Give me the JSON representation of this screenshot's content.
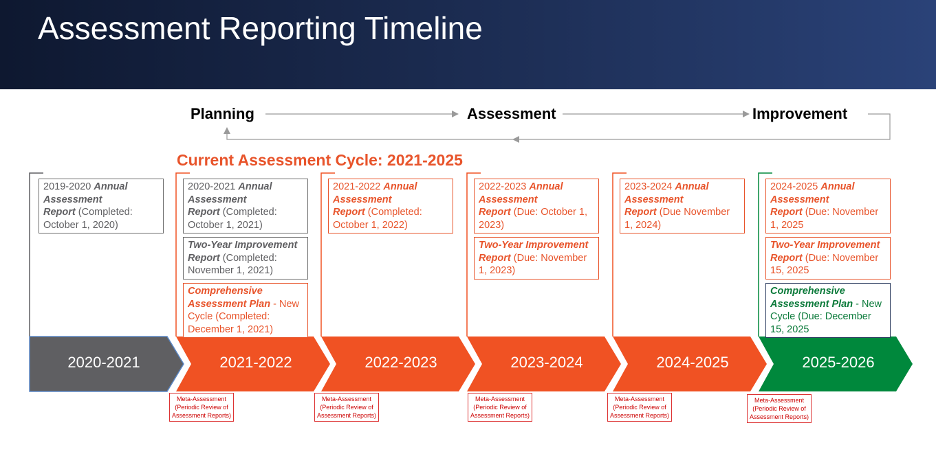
{
  "title": "Assessment Reporting Timeline",
  "cycle": [
    "Planning",
    "Assessment",
    "Improvement"
  ],
  "current_cycle": "Current Assessment Cycle: 2021-2025",
  "columns": [
    {
      "year": "2020-2021",
      "color": "#5f5f62",
      "notes": [
        {
          "lead": "2019-2020",
          "emphasis": "Annual Assessment Report",
          "detail": "(Completed: October 1, 2020)",
          "color": "#5f5f62",
          "border": "#6d6d6d"
        }
      ]
    },
    {
      "year": "2021-2022",
      "color": "#f05223",
      "notes": [
        {
          "lead": "2020-2021",
          "emphasis": "Annual Assessment Report",
          "detail": "(Completed: October 1, 2021)",
          "color": "#5f5f62",
          "border": "#6d6d6d"
        },
        {
          "emphasis": "Two-Year Improvement Report",
          "detail": "(Completed: November 1, 2021)",
          "color": "#5f5f62",
          "border": "#6d6d6d"
        },
        {
          "emphasis": "Comprehensive Assessment Plan",
          "detail": "- New Cycle (Completed: December 1, 2021)",
          "color": "#e8542b",
          "border": "#e8542b"
        }
      ],
      "meta": {
        "title": "Meta-Assessment",
        "text": "(Periodic Review of Assessment Reports)"
      }
    },
    {
      "year": "2022-2023",
      "color": "#f05223",
      "notes": [
        {
          "lead": "2021-2022",
          "emphasis": "Annual Assessment Report",
          "detail": "(Completed: October 1, 2022)",
          "color": "#e8542b",
          "border": "#e8542b"
        }
      ],
      "meta": {
        "title": "Meta-Assessment",
        "text": "(Periodic Review of Assessment Reports)"
      }
    },
    {
      "year": "2023-2024",
      "color": "#f05223",
      "notes": [
        {
          "lead": "2022-2023",
          "emphasis": "Annual Assessment Report",
          "detail": "(Due: October 1, 2023)",
          "color": "#e8542b",
          "border": "#e8542b"
        },
        {
          "emphasis": "Two-Year Improvement Report",
          "detail": "(Due: November 1, 2023)",
          "color": "#e8542b",
          "border": "#e8542b"
        }
      ],
      "meta": {
        "title": "Meta-Assessment",
        "text": "(Periodic Review of Assessment Reports)"
      }
    },
    {
      "year": "2024-2025",
      "color": "#f05223",
      "notes": [
        {
          "lead": "2023-2024",
          "emphasis": "Annual Assessment Report",
          "detail": "(Due November 1, 2024)",
          "color": "#e8542b",
          "border": "#e8542b"
        }
      ],
      "meta": {
        "title": "Meta-Assessment",
        "text": "(Periodic Review of Assessment Reports)"
      }
    },
    {
      "year": "2025-2026",
      "color": "#00883c",
      "notes": [
        {
          "lead": "2024-2025",
          "emphasis": "Annual Assessment Report",
          "detail": "(Due: November 1, 2025",
          "color": "#e8542b",
          "border": "#e8542b"
        },
        {
          "emphasis": "Two-Year Improvement Report",
          "detail": "(Due: November 15, 2025",
          "color": "#e8542b",
          "border": "#e8542b"
        },
        {
          "emphasis": "Comprehensive Assessment Plan",
          "detail": "- New Cycle (Due: December 15, 2025",
          "color": "#0b7a3a",
          "border": "#2b3b5e"
        }
      ],
      "meta": {
        "title": "Meta-Assessment",
        "text": "(Periodic Review of Assessment Reports)"
      }
    }
  ]
}
